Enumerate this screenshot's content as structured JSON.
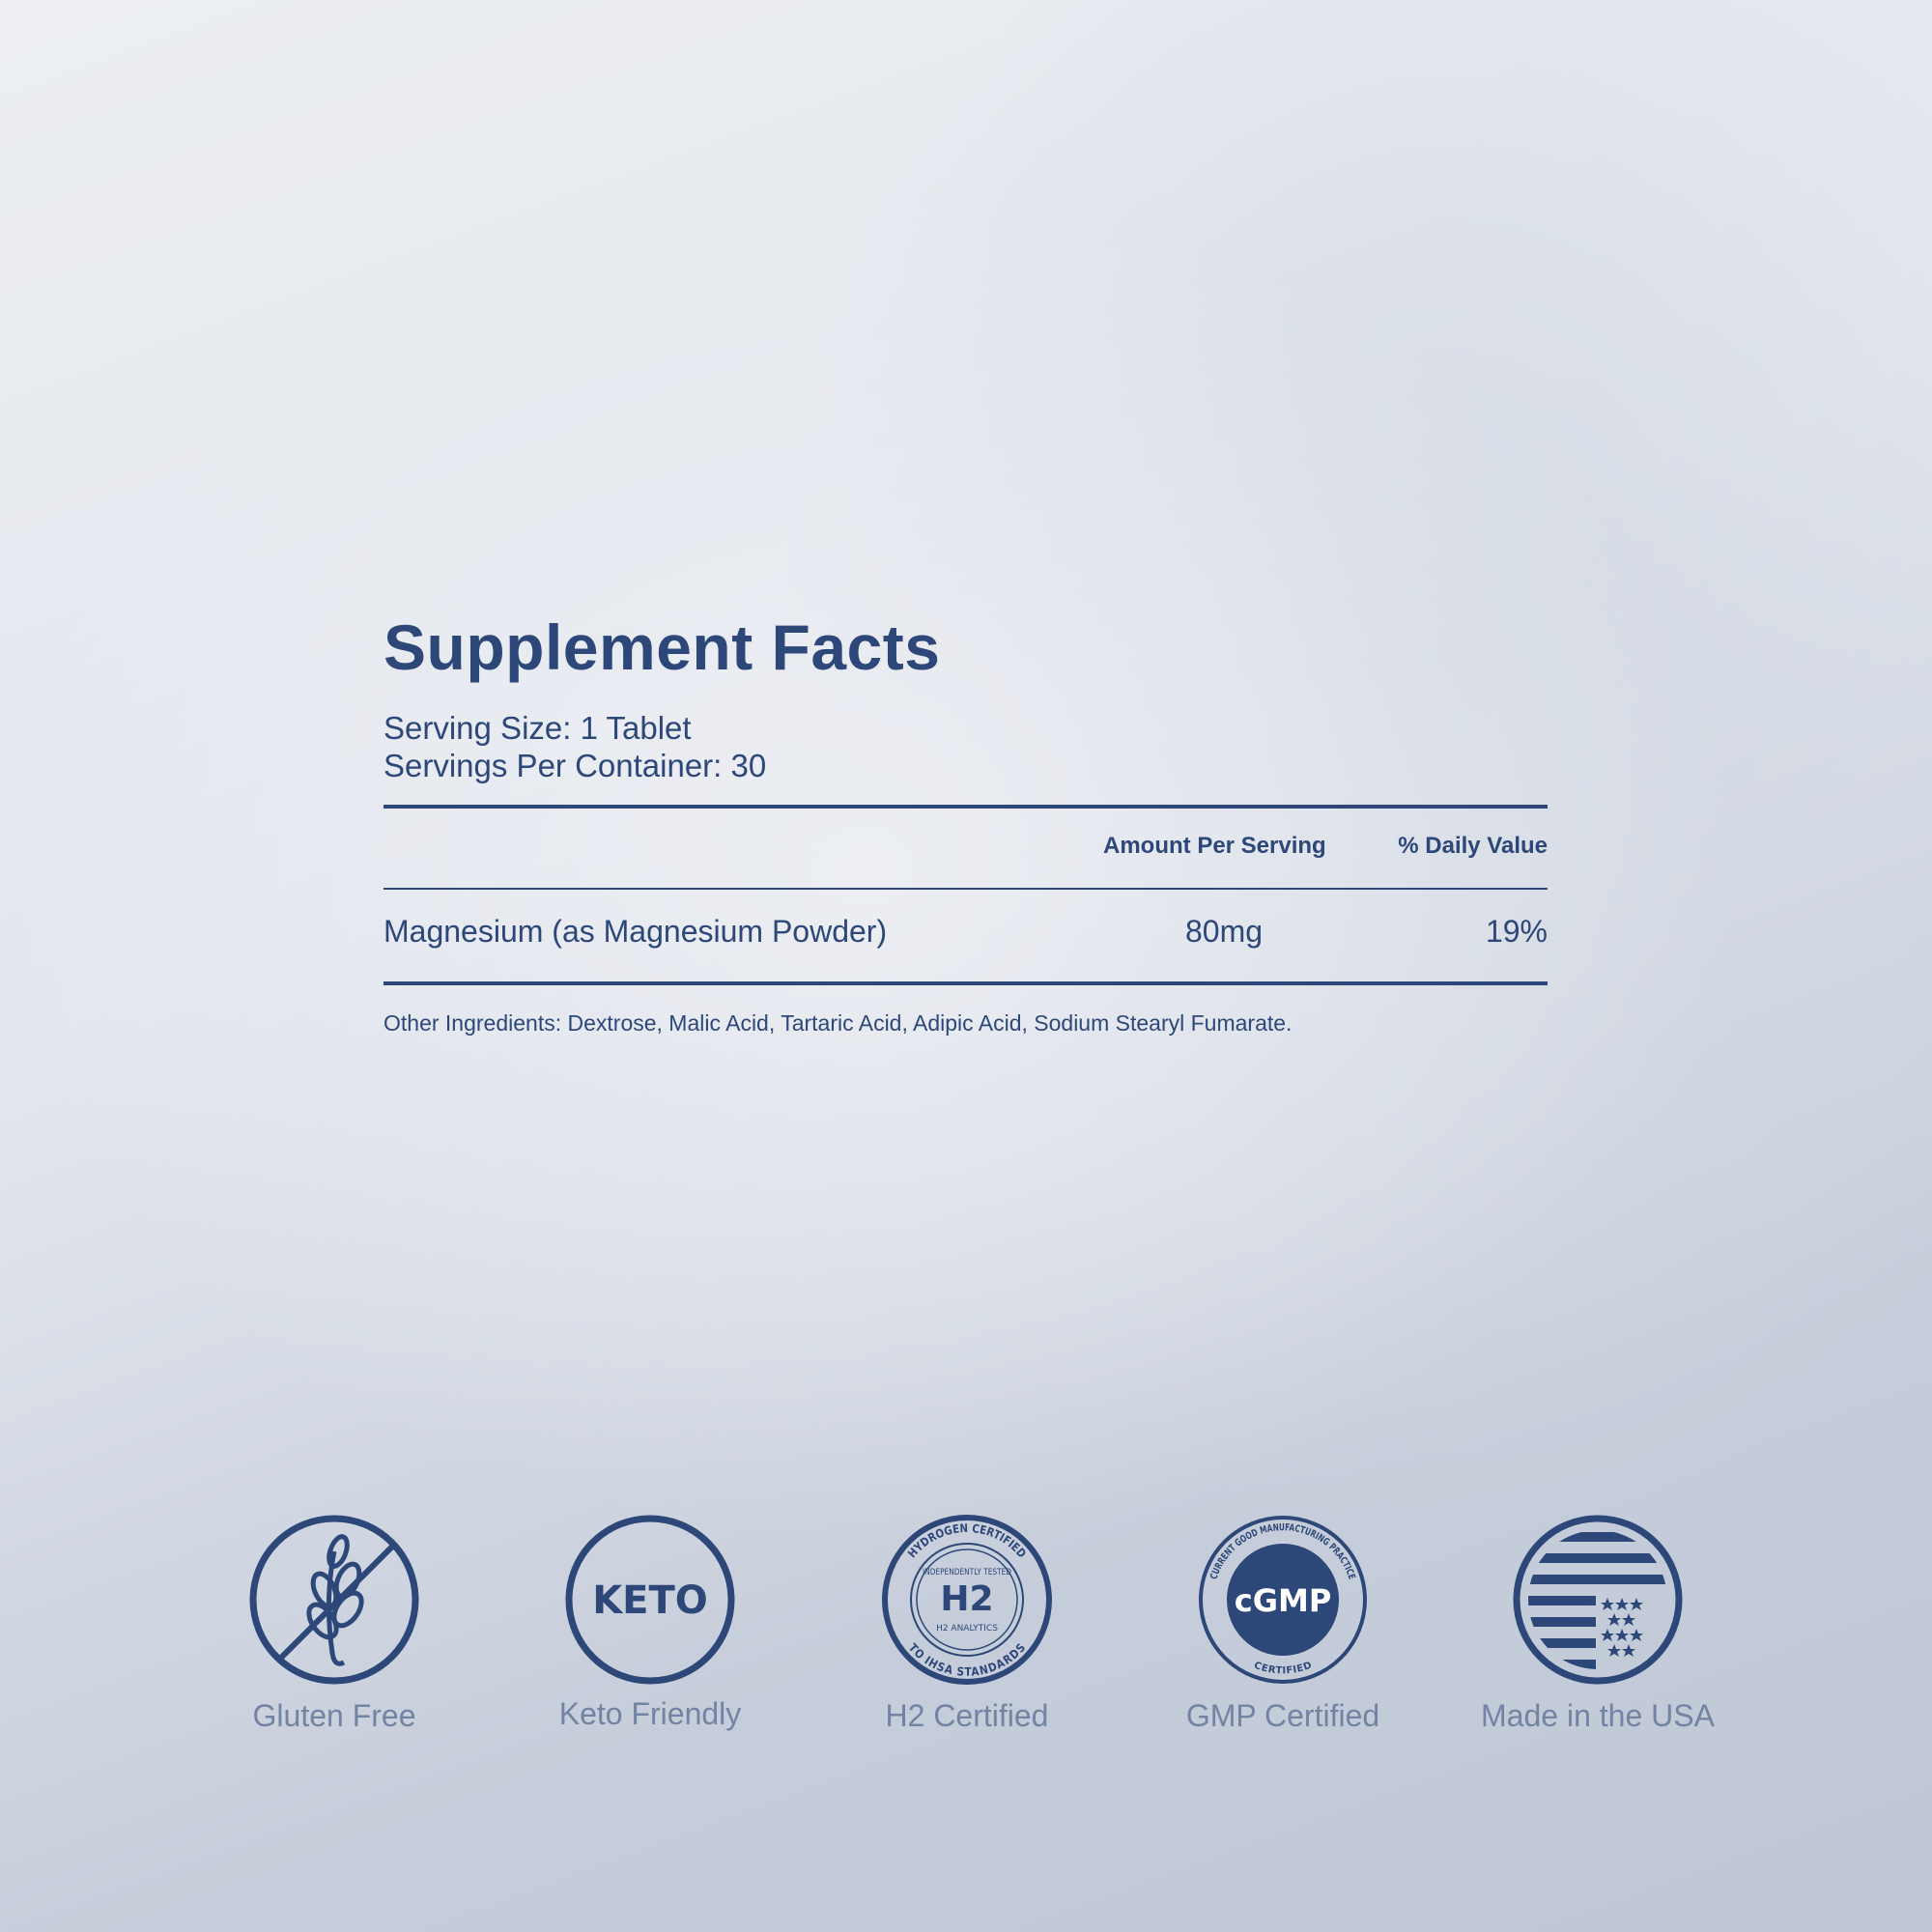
{
  "title": "Supplement Facts",
  "serving_size": "Serving Size: 1 Tablet",
  "servings_per_container": "Servings Per Container: 30",
  "columns": {
    "amount": "Amount Per Serving",
    "daily_value": "% Daily Value"
  },
  "rows": [
    {
      "name": "Magnesium (as Magnesium Powder)",
      "amount": "80mg",
      "daily_value": "19%"
    }
  ],
  "other_ingredients": "Other Ingredients: Dextrose, Malic Acid, Tartaric Acid, Adipic Acid, Sodium Stearyl Fumarate.",
  "badges": [
    {
      "icon": "gluten-free-icon",
      "label": "Gluten Free"
    },
    {
      "icon": "keto-icon",
      "label": "Keto Friendly",
      "text": "KETO"
    },
    {
      "icon": "h2-certified-seal",
      "label": "H2 Certified",
      "seal_text": [
        "HYDROGEN CERTIFIED",
        "INDEPENDENTLY TESTED",
        "H2",
        "H2 ANALYTICS",
        "TO IHSA STANDARDS"
      ]
    },
    {
      "icon": "cgmp-seal",
      "label": "GMP Certified",
      "seal_text": [
        "CURRENT GOOD MANUFACTURING PRACTICE",
        "CERTIFIED",
        "cGMP"
      ]
    },
    {
      "icon": "usa-flag-icon",
      "label": "Made in the USA"
    }
  ],
  "colors": {
    "navy": "#2c4778",
    "label_gray": "#7383a3"
  }
}
